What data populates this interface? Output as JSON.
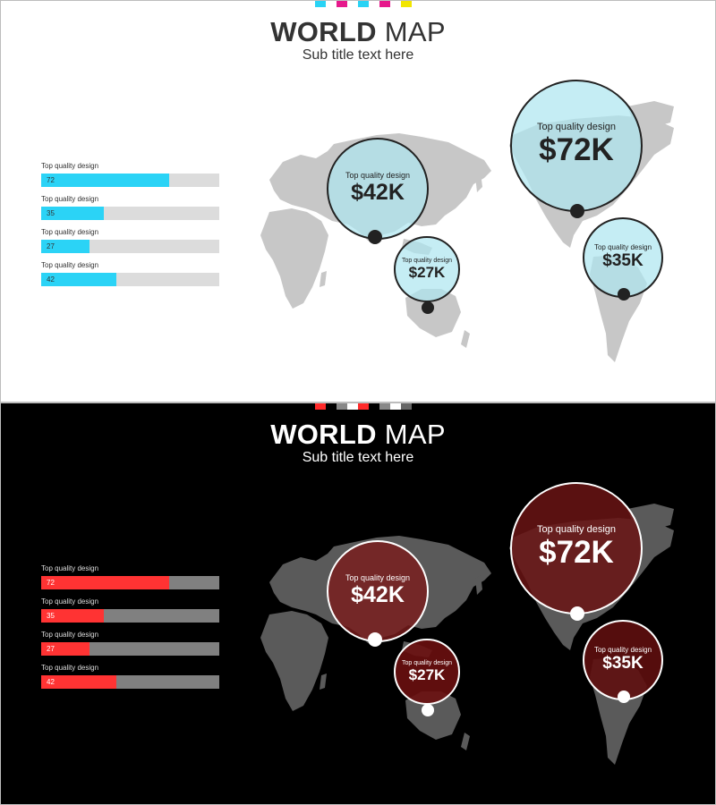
{
  "slides": [
    {
      "theme": "light",
      "title_bold": "WORLD",
      "title_rest": "MAP",
      "subtitle": "Sub title text here",
      "deco_colors": [
        "#29d3f5",
        "#ffffff",
        "#e6198c",
        "#ffffff",
        "#29d3f5",
        "#ffffff",
        "#e6198c",
        "#ffffff",
        "#f2e600"
      ],
      "accent": "#2bd3f6",
      "bars": [
        {
          "label": "Top quality design",
          "value": "72",
          "pct": 72
        },
        {
          "label": "Top quality design",
          "value": "35",
          "pct": 35
        },
        {
          "label": "Top quality design",
          "value": "27",
          "pct": 27
        },
        {
          "label": "Top quality design",
          "value": "42",
          "pct": 42
        }
      ],
      "bubbles": [
        {
          "caption": "Top quality design",
          "amount": "$42K"
        },
        {
          "caption": "Top quality design",
          "amount": "$27K"
        },
        {
          "caption": "Top quality design",
          "amount": "$72K"
        },
        {
          "caption": "Top quality design",
          "amount": "$35K"
        }
      ]
    },
    {
      "theme": "dark",
      "title_bold": "WORLD",
      "title_rest": "MAP",
      "subtitle": "Sub title text here",
      "deco_colors": [
        "#ff2a2a",
        "#000000",
        "#888888",
        "#ffffff",
        "#ff2a2a",
        "#000000",
        "#888888",
        "#ffffff",
        "#666666"
      ],
      "accent": "#ff3333",
      "bars": [
        {
          "label": "Top quality design",
          "value": "72",
          "pct": 72
        },
        {
          "label": "Top quality design",
          "value": "35",
          "pct": 35
        },
        {
          "label": "Top quality design",
          "value": "27",
          "pct": 27
        },
        {
          "label": "Top quality design",
          "value": "42",
          "pct": 42
        }
      ],
      "bubbles": [
        {
          "caption": "Top quality design",
          "amount": "$42K"
        },
        {
          "caption": "Top quality design",
          "amount": "$27K"
        },
        {
          "caption": "Top quality design",
          "amount": "$72K"
        },
        {
          "caption": "Top quality design",
          "amount": "$35K"
        }
      ]
    }
  ]
}
